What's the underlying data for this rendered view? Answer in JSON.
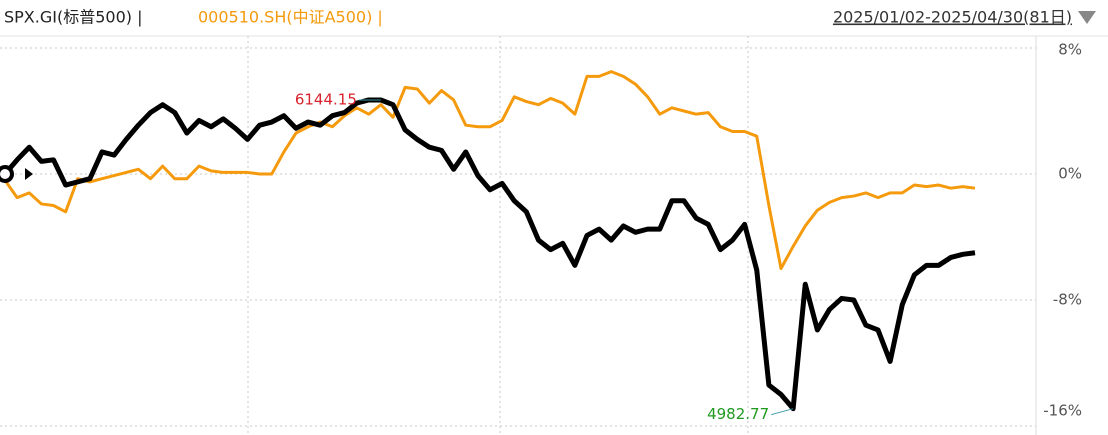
{
  "chart_data": {
    "type": "line",
    "header": [
      "SPX.GI(标普500) |",
      "000510.SH(中证A500) |"
    ],
    "date_range": "2025/01/02-2025/04/30(81日)",
    "x": [
      0,
      1,
      2,
      3,
      4,
      5,
      6,
      7,
      8,
      9,
      10,
      11,
      12,
      13,
      14,
      15,
      16,
      17,
      18,
      19,
      20,
      21,
      22,
      23,
      24,
      25,
      26,
      27,
      28,
      29,
      30,
      31,
      32,
      33,
      34,
      35,
      36,
      37,
      38,
      39,
      40,
      41,
      42,
      43,
      44,
      45,
      46,
      47,
      48,
      49,
      50,
      51,
      52,
      53,
      54,
      55,
      56,
      57,
      58,
      59,
      60,
      61,
      62,
      63,
      64,
      65,
      66,
      67,
      68,
      69,
      70,
      71,
      72,
      73,
      74,
      75,
      76,
      77,
      78,
      79,
      80
    ],
    "xlim": [
      0,
      80
    ],
    "ylim": [
      -16,
      8
    ],
    "yticks": [
      {
        "value": 8,
        "label": "8%"
      },
      {
        "value": 0,
        "label": "0%"
      },
      {
        "value": -8,
        "label": "-8%"
      },
      {
        "value": -16,
        "label": "-16%"
      }
    ],
    "grid": true,
    "series": [
      {
        "name": "SPX.GI(标普500)",
        "color": "#000000",
        "values": [
          0,
          0.9,
          1.7,
          0.8,
          0.9,
          -0.7,
          -0.5,
          -0.3,
          1.4,
          1.2,
          2.2,
          3.1,
          3.9,
          4.4,
          3.9,
          2.6,
          3.4,
          3.0,
          3.5,
          2.9,
          2.2,
          3.1,
          3.3,
          3.7,
          2.9,
          3.3,
          3.1,
          3.7,
          3.9,
          4.5,
          4.7,
          4.7,
          4.4,
          2.8,
          2.2,
          1.7,
          1.5,
          0.3,
          1.4,
          -0.1,
          -1.0,
          -0.6,
          -1.7,
          -2.4,
          -4.2,
          -4.8,
          -4.4,
          -5.8,
          -3.9,
          -3.5,
          -4.2,
          -3.3,
          -3.7,
          -3.5,
          -3.5,
          -1.7,
          -1.7,
          -2.8,
          -3.2,
          -4.8,
          -4.2,
          -3.2,
          -6.1,
          -13.4,
          -14.0,
          -14.9,
          -7.0,
          -9.9,
          -8.6,
          -7.9,
          -8.0,
          -9.6,
          -9.9,
          -11.9,
          -8.3,
          -6.4,
          -5.8,
          -5.8,
          -5.3,
          -5.1,
          -5.0
        ]
      },
      {
        "name": "000510.SH(中证A500)",
        "color": "#f59a0c",
        "values": [
          -0.4,
          -1.5,
          -1.2,
          -1.9,
          -2.0,
          -2.4,
          -0.3,
          -0.5,
          -0.3,
          -0.1,
          0.1,
          0.3,
          -0.3,
          0.5,
          -0.3,
          -0.3,
          0.5,
          0.2,
          0.1,
          0.1,
          0.1,
          0.0,
          0.0,
          1.4,
          2.6,
          3.0,
          3.3,
          3.0,
          3.7,
          4.2,
          3.8,
          4.4,
          3.6,
          5.5,
          5.4,
          4.5,
          5.3,
          4.7,
          3.1,
          3.0,
          3.0,
          3.4,
          4.9,
          4.6,
          4.4,
          4.8,
          4.5,
          3.8,
          6.2,
          6.2,
          6.5,
          6.2,
          5.7,
          4.9,
          3.8,
          4.2,
          4.0,
          3.8,
          3.9,
          3.0,
          2.7,
          2.7,
          2.4,
          -2.0,
          -6.0,
          -4.6,
          -3.3,
          -2.3,
          -1.8,
          -1.5,
          -1.4,
          -1.2,
          -1.5,
          -1.2,
          -1.2,
          -0.7,
          -0.8,
          -0.7,
          -0.9,
          -0.8,
          -0.9
        ]
      }
    ],
    "annotations": [
      {
        "text": "6144.15",
        "series": 0,
        "index": 31,
        "color": "#d9232d"
      },
      {
        "text": "4982.77",
        "series": 0,
        "index": 65,
        "color": "#1f9a1f"
      }
    ]
  }
}
